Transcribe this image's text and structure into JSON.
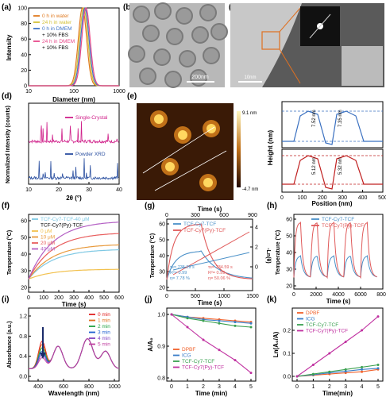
{
  "panels": {
    "a": {
      "label": "(a)",
      "xlabel": "Diameter (nm)",
      "ylabel": "Intensity",
      "xticks": [
        "10",
        "100",
        "1000"
      ],
      "yticks": [
        "0",
        "20",
        "40",
        "60",
        "80",
        "100"
      ],
      "legend": [
        {
          "text": "0 h in water",
          "color": "#e07a20"
        },
        {
          "text": "24 h in water",
          "color": "#d4c23a"
        },
        {
          "text": "0 h in DMEM",
          "color": "#3f74c7"
        },
        {
          "text": "+ 10% FBS",
          "color": ""
        },
        {
          "text": "24 h in DMEM",
          "color": "#e84a8a"
        },
        {
          "text": "+ 10% FBS",
          "color": ""
        }
      ]
    },
    "b": {
      "label": "(b)",
      "scalebar": "200nm"
    },
    "c": {
      "label": "(c)",
      "scalebar": "10nm"
    },
    "d": {
      "label": "(d)",
      "xlabel": "2θ (°)",
      "ylabel": "Normalized Intensity (counts)",
      "xticks": [
        "10",
        "20",
        "30",
        "40"
      ],
      "legend": [
        {
          "text": "Single-Crystal",
          "color": "#d0208a"
        },
        {
          "text": "Powder XRD",
          "color": "#2a4fa0"
        }
      ]
    },
    "e": {
      "label": "(e)",
      "colorbar_max": "9.1 nm",
      "colorbar_min": "-4.7 nm",
      "xlabel": "Position (nm)",
      "ylabel": "Height (nm)",
      "xticks": [
        "0",
        "100",
        "200",
        "300",
        "400",
        "500"
      ],
      "ann_top": [
        "7.52 nm",
        "7.35 nm"
      ],
      "ann_bot": [
        "5.12 nm",
        "5.32 nm"
      ]
    },
    "f": {
      "label": "(f)",
      "xlabel": "Time (s)",
      "ylabel": "Temperature (°C)",
      "xticks": [
        "0",
        "100",
        "200",
        "300",
        "400",
        "500",
        "600"
      ],
      "yticks": [
        "20",
        "30",
        "40",
        "50",
        "60"
      ],
      "legend": [
        {
          "text": "TCF-Cy7-TCF-40 μM",
          "color": "#7ec8e3"
        },
        {
          "text": "TCF-Cy7(Py)-TCF",
          "color": ""
        },
        {
          "text": "0 μM",
          "color": "#f2c14e"
        },
        {
          "text": "10 μM",
          "color": "#e89a3c"
        },
        {
          "text": "20 μM",
          "color": "#e85d5d"
        },
        {
          "text": "40 μM",
          "color": "#b35fc4"
        }
      ]
    },
    "g": {
      "label": "(g)",
      "xlabel": "Time (s)",
      "xlabel_top": "Time (s)",
      "ylabel": "Temperature (°C)",
      "ylabel_right": "-Ln(θ)",
      "xticks": [
        "0",
        "500",
        "1000",
        "1500"
      ],
      "xticks_top": [
        "0",
        "300",
        "600",
        "900"
      ],
      "yticks": [
        "20",
        "30",
        "40",
        "50",
        "60"
      ],
      "yticks_right": [
        "0",
        "2",
        "4"
      ],
      "legend": [
        {
          "text": "TCF-Cy7-TCF",
          "color": "#4a90c8"
        },
        {
          "text": "TCF-Cy7(Py)-TCF",
          "color": "#e05a5a"
        }
      ],
      "fit_blue": [
        "τs= 735.29 s",
        "R²= 0.99",
        "η= 7.78 %"
      ],
      "fit_red": [
        "τs= 234.59 s",
        "R²= 0.99",
        "η= 50.06 %"
      ]
    },
    "h": {
      "label": "(h)",
      "xlabel": "Time (s)",
      "ylabel": "Temperature (°C)",
      "xticks": [
        "0",
        "2000",
        "4000",
        "6000",
        "8000"
      ],
      "yticks": [
        "20",
        "30",
        "40",
        "50",
        "60"
      ],
      "legend": [
        {
          "text": "TCF-Cy7-TCF",
          "color": "#4a90c8"
        },
        {
          "text": "TCF-Cy7(Py)-TCF",
          "color": "#e05a5a"
        }
      ]
    },
    "i": {
      "label": "(i)",
      "xlabel": "Wavelength (nm)",
      "ylabel": "Absorbance (a.u.)",
      "xticks": [
        "400",
        "600",
        "800",
        "1000"
      ],
      "yticks": [
        "0.0",
        "0.4",
        "0.8",
        "1.2"
      ],
      "legend": [
        {
          "text": "0 min",
          "color": "#e02020"
        },
        {
          "text": "1 min",
          "color": "#e07020"
        },
        {
          "text": "2 min",
          "color": "#20a040"
        },
        {
          "text": "3 min",
          "color": "#2060d0"
        },
        {
          "text": "4 min",
          "color": "#8040c0"
        },
        {
          "text": "5 min",
          "color": "#c040a0"
        }
      ]
    },
    "j": {
      "label": "(j)",
      "xlabel": "Time (min)",
      "ylabel": "A/A₀",
      "xticks": [
        "0",
        "1",
        "2",
        "3",
        "4",
        "5"
      ],
      "yticks": [
        "0.8",
        "0.9",
        "1.0"
      ],
      "legend": [
        {
          "text": "DPBF",
          "color": "#f0602a"
        },
        {
          "text": "ICG",
          "color": "#3a7dc8"
        },
        {
          "text": "TCF-Cy7-TCF",
          "color": "#3aa050"
        },
        {
          "text": "TCF-Cy7(Py)-TCF",
          "color": "#c030a0"
        }
      ]
    },
    "k": {
      "label": "(k)",
      "xlabel": "Time(min)",
      "ylabel": "Ln(A₀/A)",
      "xticks": [
        "0",
        "1",
        "2",
        "3",
        "4",
        "5"
      ],
      "yticks": [
        "0.0",
        "0.1",
        "0.2"
      ],
      "legend": [
        {
          "text": "DPBF",
          "color": "#f0602a"
        },
        {
          "text": "ICG",
          "color": "#3a7dc8"
        },
        {
          "text": "TCF-Cy7-TCF",
          "color": "#3aa050"
        },
        {
          "text": "TCF-Cy7(Py)-TCF",
          "color": "#c030a0"
        }
      ]
    }
  },
  "chart_data": [
    {
      "type": "line",
      "panel": "a",
      "x_log": true,
      "xlim": [
        10,
        1000
      ],
      "ylim": [
        0,
        100
      ],
      "series": [
        {
          "name": "0 h in water",
          "peak": 155,
          "width": 0.13
        },
        {
          "name": "24 h in water",
          "peak": 165,
          "width": 0.13
        },
        {
          "name": "0 h in DMEM + 10% FBS",
          "peak": 175,
          "width": 0.13
        },
        {
          "name": "24 h in DMEM + 10% FBS",
          "peak": 185,
          "width": 0.13
        }
      ]
    },
    {
      "type": "line",
      "panel": "f",
      "xlim": [
        0,
        600
      ],
      "ylim": [
        20,
        65
      ],
      "series": [
        {
          "name": "TCF-Cy7-TCF-40 μM",
          "plateau": 43
        },
        {
          "name": "0 μM",
          "plateau": 31
        },
        {
          "name": "10 μM",
          "plateau": 46
        },
        {
          "name": "20 μM",
          "plateau": 53
        },
        {
          "name": "40 μM",
          "plateau": 60
        }
      ]
    },
    {
      "type": "line",
      "panel": "j",
      "x": [
        0,
        1,
        2,
        3,
        4,
        5
      ],
      "series": [
        {
          "name": "DPBF",
          "values": [
            1.0,
            0.99,
            0.985,
            0.98,
            0.975,
            0.97
          ]
        },
        {
          "name": "ICG",
          "values": [
            1.0,
            0.99,
            0.98,
            0.975,
            0.97,
            0.965
          ]
        },
        {
          "name": "TCF-Cy7-TCF",
          "values": [
            1.0,
            0.985,
            0.975,
            0.965,
            0.955,
            0.95
          ]
        },
        {
          "name": "TCF-Cy7(Py)-TCF",
          "values": [
            1.0,
            0.95,
            0.9,
            0.86,
            0.82,
            0.77
          ]
        }
      ]
    },
    {
      "type": "line",
      "panel": "k",
      "x": [
        0,
        1,
        2,
        3,
        4,
        5
      ],
      "series": [
        {
          "name": "DPBF",
          "values": [
            0,
            0.005,
            0.01,
            0.015,
            0.02,
            0.03
          ]
        },
        {
          "name": "ICG",
          "values": [
            0,
            0.007,
            0.015,
            0.022,
            0.03,
            0.035
          ]
        },
        {
          "name": "TCF-Cy7-TCF",
          "values": [
            0,
            0.01,
            0.02,
            0.03,
            0.04,
            0.05
          ]
        },
        {
          "name": "TCF-Cy7(Py)-TCF",
          "values": [
            0,
            0.05,
            0.1,
            0.15,
            0.2,
            0.26
          ]
        }
      ]
    }
  ]
}
